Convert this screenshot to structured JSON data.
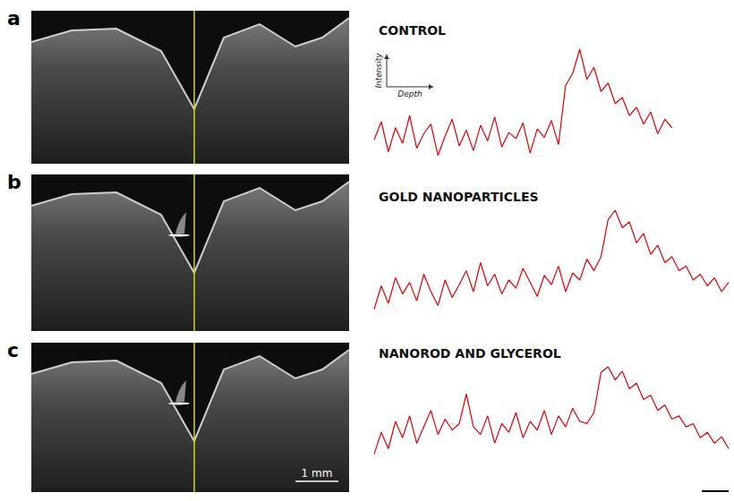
{
  "figure": {
    "panels": [
      "a",
      "b",
      "c"
    ],
    "scale_bar": "1 mm"
  },
  "chart_data": [
    {
      "type": "line",
      "title": "CONTROL",
      "x_label": "Depth",
      "y_label": "Intensity",
      "color": "#e00000",
      "x": [
        0,
        2,
        4,
        6,
        8,
        10,
        12,
        14,
        16,
        18,
        20,
        22,
        24,
        26,
        28,
        30,
        32,
        34,
        36,
        38,
        40,
        42,
        44,
        46,
        48,
        50,
        52,
        54,
        56,
        58,
        60,
        62,
        64,
        66,
        68,
        70,
        72,
        74,
        76,
        78,
        80,
        82,
        84
      ],
      "values": [
        25,
        40,
        15,
        35,
        22,
        45,
        18,
        30,
        38,
        12,
        28,
        42,
        20,
        33,
        16,
        37,
        24,
        44,
        19,
        31,
        26,
        39,
        14,
        34,
        27,
        41,
        21,
        70,
        80,
        100,
        75,
        85,
        65,
        72,
        55,
        60,
        45,
        52,
        38,
        48,
        30,
        42,
        35
      ],
      "xlim": [
        0,
        100
      ],
      "ylim": [
        0,
        100
      ],
      "tick_labels": false,
      "grid": false
    },
    {
      "type": "line",
      "title": "GOLD NANOPARTICLES",
      "color": "#e00000",
      "x": [
        0,
        2,
        4,
        6,
        8,
        10,
        12,
        14,
        16,
        18,
        20,
        22,
        24,
        26,
        28,
        30,
        32,
        34,
        36,
        38,
        40,
        42,
        44,
        46,
        48,
        50,
        52,
        54,
        56,
        58,
        60,
        62,
        64,
        66,
        68,
        70,
        72,
        74,
        76,
        78,
        80,
        82,
        84,
        86,
        88,
        90,
        92,
        94,
        96,
        98,
        100
      ],
      "values": [
        15,
        35,
        20,
        42,
        28,
        38,
        22,
        45,
        30,
        18,
        40,
        25,
        36,
        48,
        30,
        55,
        35,
        45,
        28,
        40,
        33,
        50,
        38,
        26,
        44,
        36,
        52,
        30,
        46,
        40,
        58,
        48,
        60,
        92,
        100,
        85,
        90,
        72,
        80,
        62,
        70,
        55,
        60,
        48,
        52,
        40,
        45,
        35,
        42,
        30,
        38
      ],
      "xlim": [
        0,
        100
      ],
      "ylim": [
        0,
        100
      ],
      "tick_labels": false,
      "grid": false
    },
    {
      "type": "line",
      "title": "NANOROD AND GLYCEROL",
      "color": "#e00000",
      "x": [
        0,
        2,
        4,
        6,
        8,
        10,
        12,
        14,
        16,
        18,
        20,
        22,
        24,
        26,
        28,
        30,
        32,
        34,
        36,
        38,
        40,
        42,
        44,
        46,
        48,
        50,
        52,
        54,
        56,
        58,
        60,
        62,
        64,
        66,
        68,
        70,
        72,
        74,
        76,
        78,
        80,
        82,
        84,
        86,
        88,
        90,
        92,
        94,
        96,
        98,
        100
      ],
      "values": [
        20,
        40,
        25,
        50,
        35,
        55,
        30,
        45,
        60,
        38,
        52,
        42,
        48,
        75,
        45,
        38,
        55,
        30,
        48,
        40,
        58,
        35,
        50,
        42,
        60,
        38,
        55,
        45,
        62,
        50,
        48,
        58,
        95,
        100,
        88,
        96,
        80,
        85,
        70,
        74,
        60,
        65,
        52,
        55,
        45,
        48,
        35,
        40,
        30,
        36,
        25
      ],
      "xlim": [
        0,
        100
      ],
      "ylim": [
        0,
        100
      ],
      "tick_labels": false,
      "grid": false
    }
  ]
}
